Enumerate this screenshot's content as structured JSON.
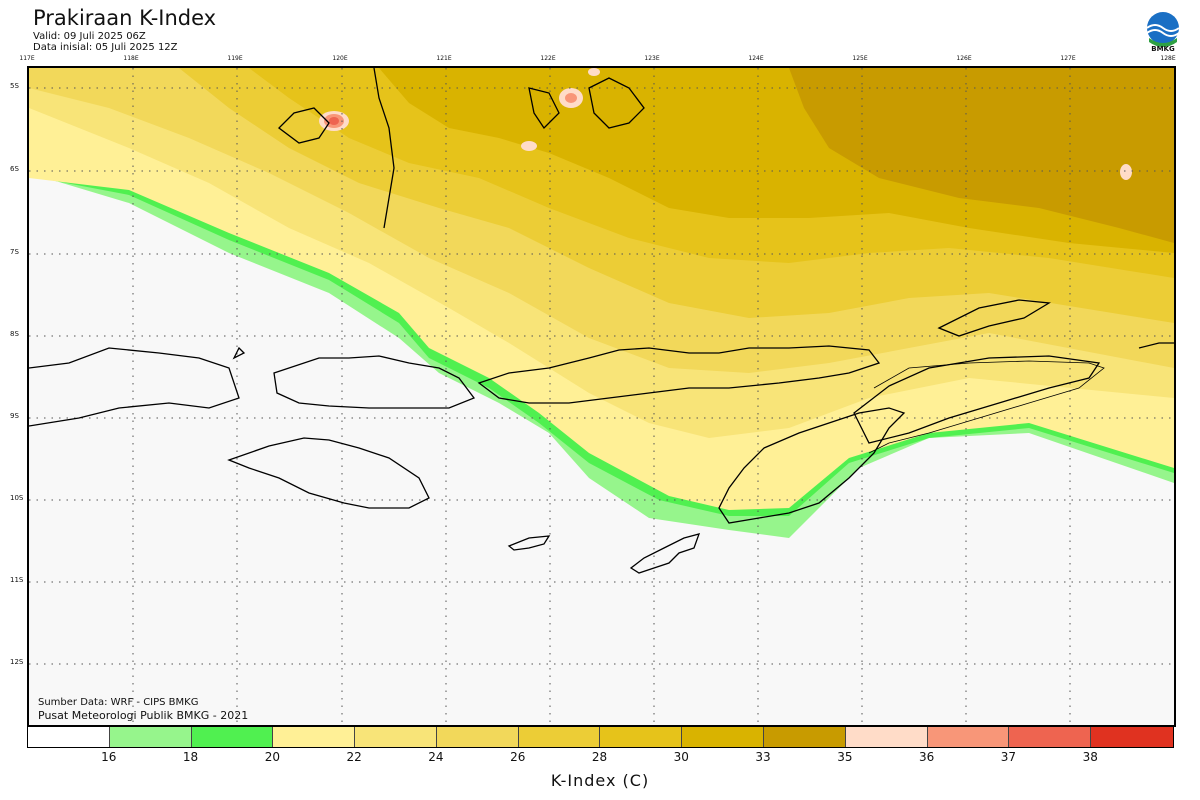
{
  "header": {
    "title": "Prakiraan K-Index",
    "valid": "Valid: 09 Juli 2025 06Z",
    "data_init": "Data inisial: 05 Juli 2025 12Z",
    "logo_text": "BMKG"
  },
  "map": {
    "lon_labels": [
      "117E",
      "118E",
      "119E",
      "120E",
      "121E",
      "122E",
      "123E",
      "124E",
      "125E",
      "126E",
      "127E",
      "128E"
    ],
    "lat_labels": [
      "5S",
      "6S",
      "7S",
      "8S",
      "9S",
      "10S",
      "11S",
      "12S"
    ],
    "source_line": "Sumber Data: WRF - CIPS BMKG",
    "credit_line": "Pusat Meteorologi Publik BMKG - 2021"
  },
  "colorbar": {
    "title": "K-Index (C)",
    "ticks": [
      "16",
      "18",
      "20",
      "22",
      "24",
      "26",
      "28",
      "30",
      "33",
      "35",
      "36",
      "37",
      "38"
    ],
    "colors": [
      "#ffffff",
      "#96f58c",
      "#50f050",
      "#fff096",
      "#f8e478",
      "#f2d85a",
      "#eccd36",
      "#e6c31a",
      "#d9b300",
      "#c89b00",
      "#ffdcc8",
      "#f89678",
      "#ee6450",
      "#e03220"
    ]
  }
}
